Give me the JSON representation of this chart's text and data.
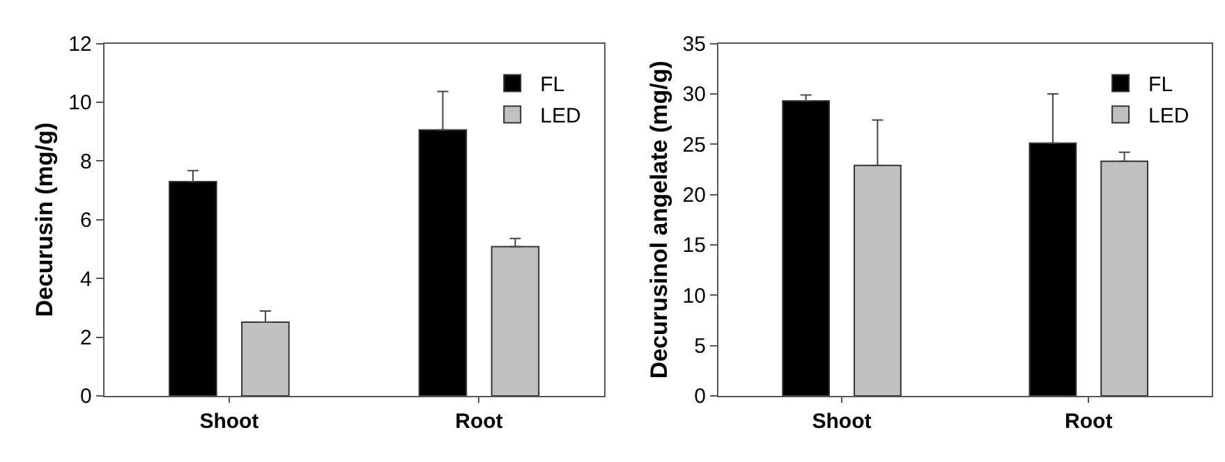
{
  "chart_data": [
    {
      "type": "bar",
      "ylabel": "Decurusin (mg/g)",
      "categories": [
        "Shoot",
        "Root"
      ],
      "series": [
        {
          "name": "FL",
          "color": "#000000",
          "values": [
            7.3,
            9.06
          ],
          "errors": [
            [
              7.3,
              7.67
            ],
            [
              9.06,
              10.37
            ]
          ]
        },
        {
          "name": "LED",
          "color": "#c0c0c0",
          "values": [
            2.51,
            5.08
          ],
          "errors": [
            [
              2.51,
              2.89
            ],
            [
              5.08,
              5.36
            ]
          ]
        }
      ],
      "ylim": [
        0,
        12
      ],
      "yticks": [
        0,
        2,
        4,
        6,
        8,
        10,
        12
      ],
      "legend": "top right"
    },
    {
      "type": "bar",
      "ylabel": "Decurusinol angelate (mg/g)",
      "categories": [
        "Shoot",
        "Root"
      ],
      "series": [
        {
          "name": "FL",
          "color": "#000000",
          "values": [
            29.3,
            25.1
          ],
          "errors": [
            [
              29.3,
              29.9
            ],
            [
              25.1,
              30.0
            ]
          ]
        },
        {
          "name": "LED",
          "color": "#c0c0c0",
          "values": [
            22.9,
            23.3
          ],
          "errors": [
            [
              22.9,
              27.4
            ],
            [
              23.3,
              24.2
            ]
          ]
        }
      ],
      "ylim": [
        0,
        35
      ],
      "yticks": [
        0,
        5,
        10,
        15,
        20,
        25,
        30,
        35
      ],
      "legend": "top right"
    }
  ]
}
